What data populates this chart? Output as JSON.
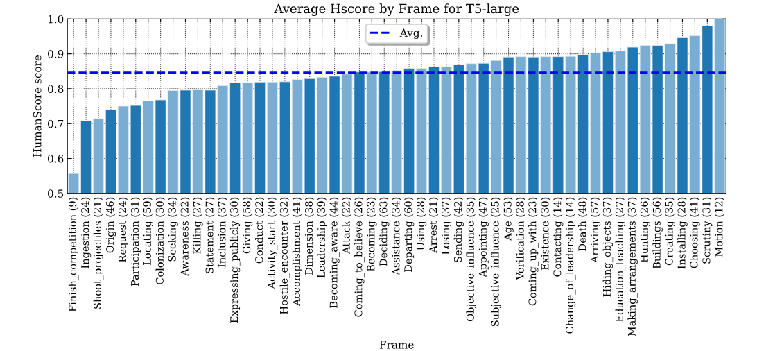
{
  "chart_data": {
    "type": "bar",
    "title": "Average Hscore by Frame for T5-large",
    "xlabel": "Frame",
    "ylabel": "HumanScore score",
    "categories": [
      "Finish_competition (9)",
      "Ingestion (24)",
      "Shoot_projectiles (21)",
      "Origin (46)",
      "Request (24)",
      "Participation (31)",
      "Locating (59)",
      "Colonization (30)",
      "Seeking (34)",
      "Awareness (22)",
      "Killing (27)",
      "Statement (27)",
      "Inclusion (37)",
      "Expressing_publicly (30)",
      "Giving (58)",
      "Conduct (22)",
      "Activity_start (30)",
      "Hostile_encounter (32)",
      "Accomplishment (41)",
      "Dimension (38)",
      "Leadership (39)",
      "Becoming_aware (44)",
      "Attack (22)",
      "Coming_to_believe (26)",
      "Becoming (23)",
      "Deciding (63)",
      "Assistance (34)",
      "Departing (60)",
      "Using (28)",
      "Arrest (21)",
      "Losing (37)",
      "Sending (42)",
      "Objective_influence (35)",
      "Appointing (47)",
      "Subjective_influence (25)",
      "Age (53)",
      "Verification (28)",
      "Coming_up_with (23)",
      "Existence (30)",
      "Contacting (14)",
      "Change_of_leadership (14)",
      "Death (48)",
      "Arriving (57)",
      "Hiding_objects (37)",
      "Education_teaching (27)",
      "Making_arrangements (37)",
      "Hunting (26)",
      "Buildings (56)",
      "Creating (35)",
      "Installing (28)",
      "Choosing (41)",
      "Scrutiny (31)",
      "Motion (12)"
    ],
    "values": [
      0.557,
      0.708,
      0.714,
      0.74,
      0.75,
      0.752,
      0.765,
      0.768,
      0.795,
      0.796,
      0.797,
      0.796,
      0.809,
      0.817,
      0.817,
      0.819,
      0.819,
      0.82,
      0.826,
      0.829,
      0.833,
      0.836,
      0.842,
      0.848,
      0.848,
      0.849,
      0.852,
      0.858,
      0.858,
      0.863,
      0.863,
      0.869,
      0.872,
      0.873,
      0.881,
      0.891,
      0.892,
      0.891,
      0.892,
      0.892,
      0.893,
      0.897,
      0.903,
      0.906,
      0.908,
      0.919,
      0.924,
      0.924,
      0.929,
      0.946,
      0.952,
      0.98,
      1.0
    ],
    "colors": [
      "#79add2",
      "#1f77b4",
      "#79add2",
      "#1f77b4",
      "#79add2",
      "#1f77b4",
      "#79add2",
      "#1f77b4",
      "#79add2",
      "#1f77b4",
      "#79add2",
      "#1f77b4",
      "#79add2",
      "#1f77b4",
      "#79add2",
      "#1f77b4",
      "#79add2",
      "#1f77b4",
      "#79add2",
      "#1f77b4",
      "#79add2",
      "#1f77b4",
      "#79add2",
      "#1f77b4",
      "#79add2",
      "#1f77b4",
      "#79add2",
      "#1f77b4",
      "#79add2",
      "#1f77b4",
      "#79add2",
      "#1f77b4",
      "#79add2",
      "#1f77b4",
      "#79add2",
      "#1f77b4",
      "#79add2",
      "#1f77b4",
      "#79add2",
      "#1f77b4",
      "#79add2",
      "#1f77b4",
      "#79add2",
      "#1f77b4",
      "#79add2",
      "#1f77b4",
      "#79add2",
      "#1f77b4",
      "#79add2",
      "#1f77b4",
      "#79add2",
      "#1f77b4",
      "#79add2"
    ],
    "ylim": [
      0.5,
      1.0
    ],
    "yticks": [
      0.5,
      0.6,
      0.7,
      0.8,
      0.9,
      {
        "value": 1,
        "label": "1.0"
      }
    ],
    "ref_lines": [
      {
        "axis": "y",
        "value": 0.846,
        "label": "Avg.",
        "color": "#0000ff",
        "line_style": "dashed"
      }
    ],
    "grid": true,
    "legend": "top"
  }
}
